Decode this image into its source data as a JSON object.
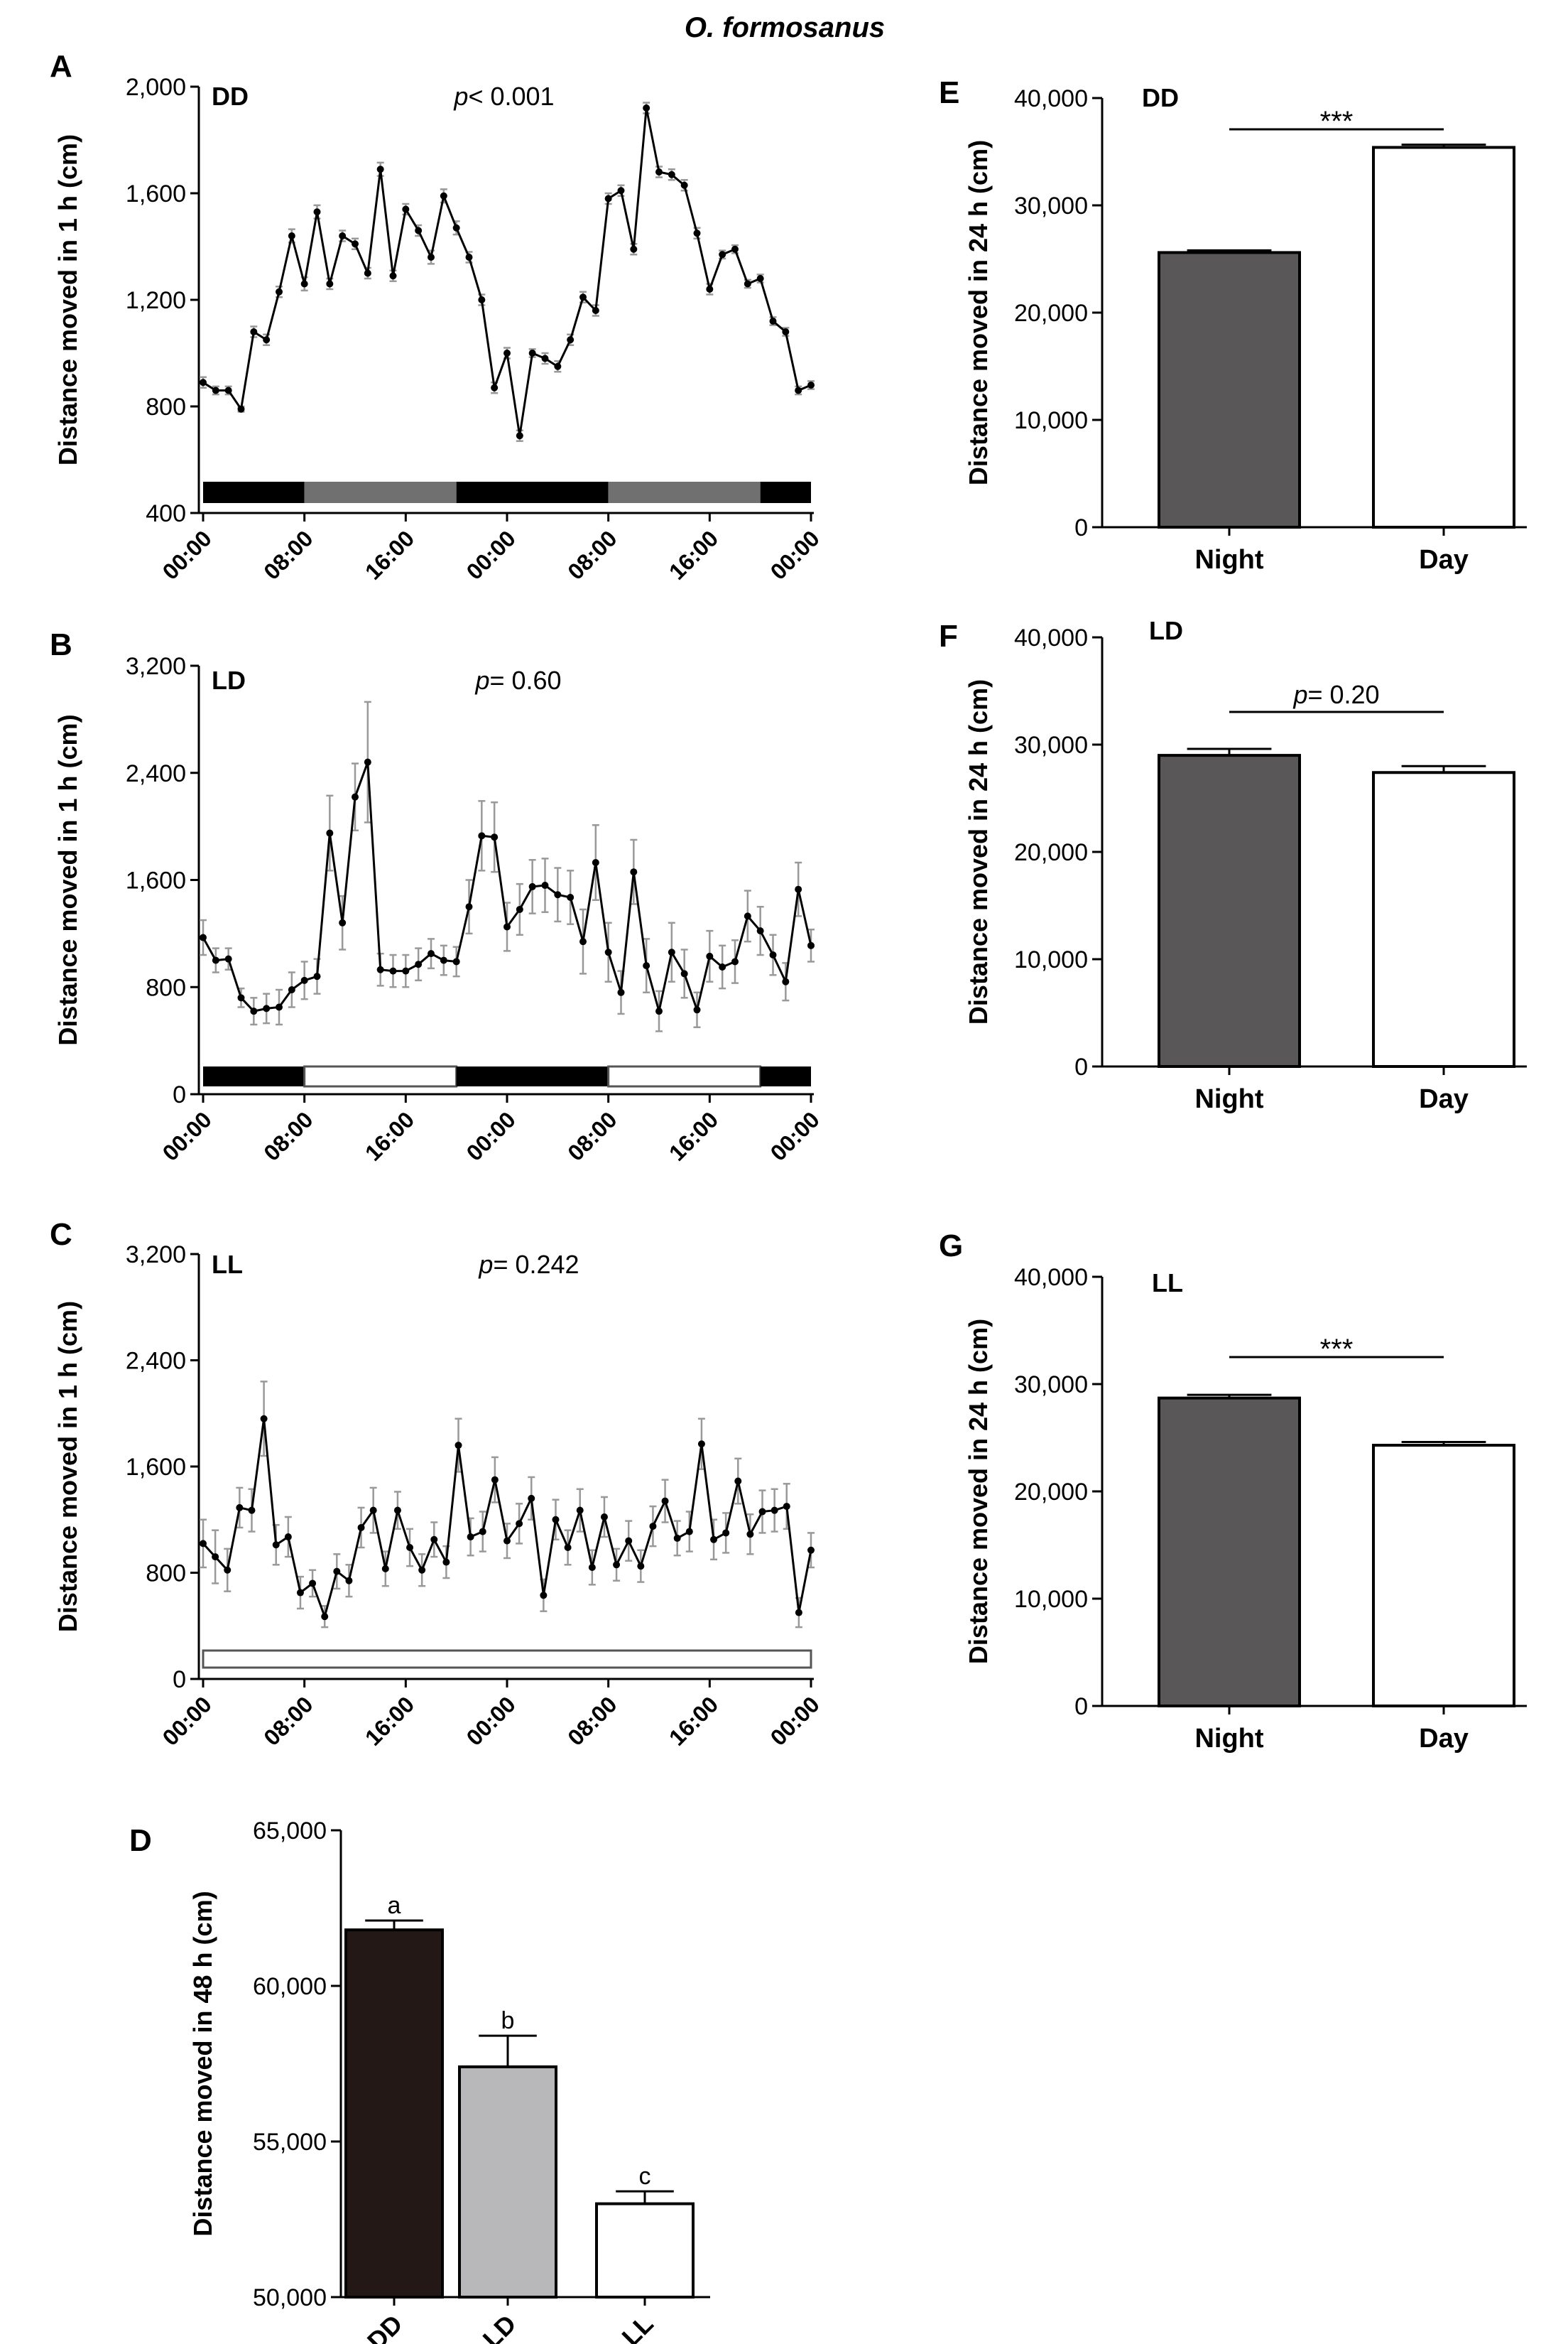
{
  "figure_title": "O. formosanus",
  "chart_data": [
    {
      "id": "A",
      "panel_label": "A",
      "type": "line",
      "condition": "DD",
      "pvalue": "p< 0.001",
      "ylabel": "Distance moved in 1 h (cm)",
      "ylim": [
        400,
        2000
      ],
      "yticks": [
        "400",
        "800",
        "1,200",
        "1,600",
        "2,000"
      ],
      "xticks": [
        "00:00",
        "08:00",
        "16:00",
        "00:00",
        "08:00",
        "16:00",
        "00:00"
      ],
      "x_range_hours": [
        0,
        48
      ],
      "values": [
        890,
        860,
        860,
        790,
        1080,
        1050,
        1230,
        1440,
        1260,
        1530,
        1260,
        1440,
        1410,
        1300,
        1690,
        1290,
        1540,
        1460,
        1360,
        1590,
        1470,
        1360,
        1200,
        870,
        1000,
        690,
        1000,
        980,
        950,
        1050,
        1210,
        1160,
        1580,
        1610,
        1390,
        1920,
        1680,
        1670,
        1630,
        1450,
        1240,
        1370,
        1390,
        1260,
        1280,
        1120,
        1080,
        860,
        880
      ],
      "errors": [
        20,
        15,
        15,
        10,
        20,
        20,
        20,
        25,
        25,
        25,
        20,
        20,
        20,
        20,
        25,
        20,
        20,
        20,
        25,
        25,
        25,
        20,
        20,
        20,
        20,
        20,
        15,
        20,
        20,
        20,
        20,
        20,
        20,
        20,
        20,
        20,
        20,
        20,
        20,
        20,
        20,
        15,
        15,
        15,
        15,
        15,
        15,
        15,
        15
      ],
      "light_bar": [
        {
          "start": 0,
          "end": 8,
          "phase": "subjective-night"
        },
        {
          "start": 8,
          "end": 20,
          "phase": "subjective-day"
        },
        {
          "start": 20,
          "end": 32,
          "phase": "subjective-night"
        },
        {
          "start": 32,
          "end": 44,
          "phase": "subjective-day"
        },
        {
          "start": 44,
          "end": 48,
          "phase": "subjective-night"
        }
      ]
    },
    {
      "id": "B",
      "panel_label": "B",
      "type": "line",
      "condition": "LD",
      "pvalue": "p= 0.60",
      "ylabel": "Distance moved in 1 h (cm)",
      "ylim": [
        0,
        3200
      ],
      "yticks": [
        "0",
        "800",
        "1,600",
        "2,400",
        "3,200"
      ],
      "xticks": [
        "00:00",
        "08:00",
        "16:00",
        "00:00",
        "08:00",
        "16:00",
        "00:00"
      ],
      "x_range_hours": [
        0,
        48
      ],
      "values": [
        1170,
        1000,
        1010,
        720,
        620,
        640,
        650,
        780,
        850,
        880,
        1950,
        1280,
        2220,
        2480,
        930,
        920,
        920,
        970,
        1050,
        1000,
        990,
        1400,
        1930,
        1920,
        1250,
        1380,
        1550,
        1560,
        1490,
        1470,
        1140,
        1730,
        1060,
        760,
        1660,
        960,
        620,
        1060,
        900,
        630,
        1030,
        950,
        990,
        1330,
        1220,
        1040,
        840,
        1530,
        1110
      ],
      "errors": [
        130,
        90,
        80,
        70,
        100,
        110,
        130,
        130,
        140,
        130,
        280,
        200,
        250,
        450,
        120,
        120,
        120,
        120,
        110,
        110,
        110,
        200,
        260,
        260,
        180,
        190,
        200,
        200,
        200,
        200,
        240,
        280,
        220,
        160,
        240,
        200,
        150,
        220,
        180,
        130,
        190,
        160,
        160,
        190,
        180,
        150,
        140,
        200,
        120
      ],
      "light_bar": [
        {
          "start": 0,
          "end": 8,
          "phase": "dark"
        },
        {
          "start": 8,
          "end": 20,
          "phase": "light"
        },
        {
          "start": 20,
          "end": 32,
          "phase": "dark"
        },
        {
          "start": 32,
          "end": 44,
          "phase": "light"
        },
        {
          "start": 44,
          "end": 48,
          "phase": "dark"
        }
      ]
    },
    {
      "id": "C",
      "panel_label": "C",
      "type": "line",
      "condition": "LL",
      "pvalue": "p= 0.242",
      "ylabel": "Distance moved in 1 h (cm)",
      "ylim": [
        0,
        3200
      ],
      "yticks": [
        "0",
        "800",
        "1,600",
        "2,400",
        "3,200"
      ],
      "xticks": [
        "00:00",
        "08:00",
        "16:00",
        "00:00",
        "08:00",
        "16:00",
        "00:00"
      ],
      "x_range_hours": [
        0,
        48
      ],
      "values": [
        1020,
        920,
        820,
        1290,
        1270,
        1960,
        1010,
        1070,
        650,
        720,
        470,
        810,
        740,
        1140,
        1270,
        830,
        1270,
        990,
        820,
        1050,
        880,
        1760,
        1070,
        1110,
        1500,
        1040,
        1170,
        1360,
        630,
        1200,
        990,
        1270,
        840,
        1220,
        860,
        1040,
        850,
        1150,
        1340,
        1060,
        1110,
        1770,
        1050,
        1100,
        1490,
        1090,
        1260,
        1270,
        1300,
        500,
        970
      ],
      "errors": [
        180,
        200,
        160,
        150,
        160,
        280,
        150,
        150,
        120,
        100,
        80,
        130,
        120,
        150,
        170,
        130,
        140,
        140,
        120,
        130,
        120,
        200,
        140,
        150,
        170,
        130,
        150,
        160,
        120,
        150,
        130,
        160,
        130,
        150,
        120,
        150,
        120,
        150,
        160,
        130,
        150,
        190,
        150,
        150,
        170,
        150,
        160,
        160,
        170,
        110,
        130
      ],
      "light_bar": [
        {
          "start": 0,
          "end": 48,
          "phase": "light"
        }
      ]
    },
    {
      "id": "D",
      "panel_label": "D",
      "type": "bar",
      "ylabel": "Distance moved in 48 h (cm)",
      "ylim": [
        50000,
        65000
      ],
      "yticks": [
        "50,000",
        "55,000",
        "60,000",
        "65,000"
      ],
      "categories": [
        "DD",
        "LD",
        "LL"
      ],
      "values": [
        61800,
        57400,
        53000
      ],
      "errors": [
        300,
        1000,
        400
      ],
      "sig_letters": [
        "a",
        "b",
        "c"
      ],
      "colors": [
        "#231815",
        "#b8b8ba",
        "#ffffff"
      ]
    },
    {
      "id": "E",
      "panel_label": "E",
      "type": "bar",
      "condition": "DD",
      "ylabel": "Distance moved in 24 h (cm)",
      "ylim": [
        0,
        40000
      ],
      "yticks": [
        "0",
        "10,000",
        "20,000",
        "30,000",
        "40,000"
      ],
      "categories": [
        "Night",
        "Day"
      ],
      "values": [
        25600,
        35400
      ],
      "errors": [
        200,
        250
      ],
      "significance": "***",
      "colors": [
        "#595757",
        "#ffffff"
      ]
    },
    {
      "id": "F",
      "panel_label": "F",
      "type": "bar",
      "condition": "LD",
      "ylabel": "Distance moved in 24 h (cm)",
      "ylim": [
        0,
        40000
      ],
      "yticks": [
        "0",
        "10,000",
        "20,000",
        "30,000",
        "40,000"
      ],
      "categories": [
        "Night",
        "Day"
      ],
      "values": [
        29000,
        27400
      ],
      "errors": [
        600,
        600
      ],
      "significance": "p= 0.20",
      "colors": [
        "#595757",
        "#ffffff"
      ]
    },
    {
      "id": "G",
      "panel_label": "G",
      "type": "bar",
      "condition": "LL",
      "ylabel": "Distance moved in 24 h (cm)",
      "ylim": [
        0,
        40000
      ],
      "yticks": [
        "0",
        "10,000",
        "20,000",
        "30,000",
        "40,000"
      ],
      "categories": [
        "Night",
        "Day"
      ],
      "values": [
        28700,
        24300
      ],
      "errors": [
        300,
        300
      ],
      "significance": "***",
      "colors": [
        "#595757",
        "#ffffff"
      ]
    }
  ]
}
